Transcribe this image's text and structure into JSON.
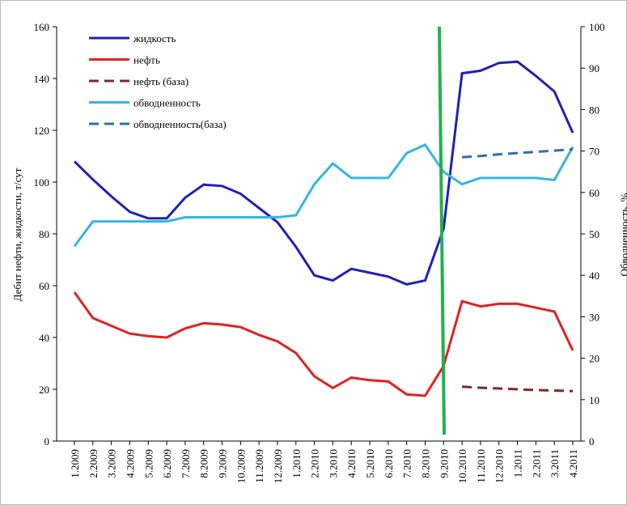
{
  "chart_data": {
    "type": "line",
    "y_label": "Дебит нефти, жидкости, т/сут",
    "y2_label": "Обводненность, %",
    "categories": [
      "1.2009",
      "2.2009",
      "3.2009",
      "4.2009",
      "5.2009",
      "6.2009",
      "7.2009",
      "8.2009",
      "9.2009",
      "10.2009",
      "11.2009",
      "12.2009",
      "1.2010",
      "2.2010",
      "3.2010",
      "4.2010",
      "5.2010",
      "6.2010",
      "7.2010",
      "8.2010",
      "9.2010",
      "10.2010",
      "11.2010",
      "12.2010",
      "1.2011",
      "2.2011",
      "3.2011",
      "4.2011"
    ],
    "series": [
      {
        "name": "жидкость",
        "color": "#2020b8",
        "style": "solid",
        "values": [
          108,
          101,
          94.5,
          88.5,
          86,
          86,
          94,
          99,
          98.5,
          95.5,
          90,
          84.5,
          75,
          64,
          62,
          66.5,
          65,
          63.5,
          60.5,
          62,
          82,
          142,
          143,
          146,
          146.5,
          141,
          135,
          119
        ]
      },
      {
        "name": "нефть",
        "color": "#e02222",
        "style": "solid",
        "values": [
          57.5,
          47.5,
          44.5,
          41.5,
          40.5,
          40,
          43.5,
          45.5,
          45,
          44,
          41,
          38.5,
          34,
          25,
          20.5,
          24.5,
          23.5,
          23,
          18,
          17.5,
          29,
          54,
          52,
          53,
          53,
          51.5,
          50,
          35
        ]
      },
      {
        "name": "нефть (база)",
        "color": "#7a2a2a",
        "style": "dashed",
        "values": [
          null,
          null,
          null,
          null,
          null,
          null,
          null,
          null,
          null,
          null,
          null,
          null,
          null,
          null,
          null,
          null,
          null,
          null,
          null,
          null,
          null,
          21,
          20.6,
          20.3,
          20,
          19.7,
          19.5,
          19.3
        ]
      },
      {
        "name": "обводненность",
        "color": "#33b5e5",
        "style": "solid",
        "axis": "y2",
        "values": [
          47,
          53,
          53,
          53,
          53,
          53,
          54,
          54,
          54,
          54,
          54,
          54,
          54.5,
          62,
          67,
          63.5,
          63.5,
          63.5,
          69.5,
          71.5,
          65,
          62,
          63.5,
          63.5,
          63.5,
          63.5,
          63,
          71
        ]
      },
      {
        "name": "обводненность(база)",
        "color": "#2e6fb0",
        "style": "dashed",
        "axis": "y2",
        "values": [
          null,
          null,
          null,
          null,
          null,
          null,
          null,
          null,
          null,
          null,
          null,
          null,
          null,
          null,
          null,
          null,
          null,
          null,
          null,
          null,
          null,
          68.5,
          68.8,
          69.2,
          69.5,
          69.8,
          70.1,
          70.4
        ]
      }
    ],
    "ylim": [
      0,
      160
    ],
    "yticks": [
      0,
      20,
      40,
      60,
      80,
      100,
      120,
      140,
      160
    ],
    "y2lim": [
      0,
      100
    ],
    "y2ticks": [
      0,
      10,
      20,
      30,
      40,
      50,
      60,
      70,
      80,
      90,
      100
    ],
    "legend": "upper left"
  }
}
